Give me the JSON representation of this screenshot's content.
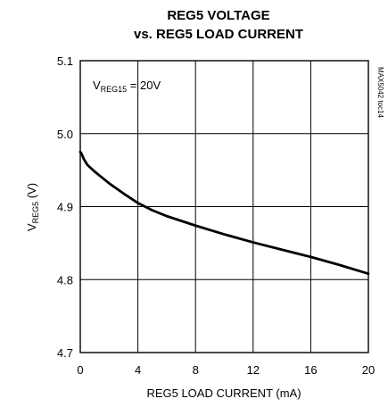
{
  "chart_data": {
    "type": "line",
    "title_line1": "REG5 VOLTAGE",
    "title_line2": "vs. REG5 LOAD CURRENT",
    "xlabel": "REG5 LOAD CURRENT (mA)",
    "ylabel": {
      "prefix": "V",
      "sub": "REG5",
      "suffix": " (V)"
    },
    "xlim": [
      0,
      20
    ],
    "ylim": [
      4.7,
      5.1
    ],
    "xticks": [
      "0",
      "4",
      "8",
      "12",
      "16",
      "20"
    ],
    "yticks": [
      "4.7",
      "4.8",
      "4.9",
      "5.0",
      "5.1"
    ],
    "grid": true,
    "annotation": {
      "prefix": "V",
      "sub": "REG15",
      "suffix": " = 20V"
    },
    "watermark": "MAX5042 toc14",
    "series": [
      {
        "x": [
          0,
          0.1,
          0.25,
          0.5,
          1,
          1.5,
          2,
          3,
          4,
          5,
          6,
          8,
          10,
          12,
          14,
          16,
          18,
          20
        ],
        "y": [
          4.975,
          4.972,
          4.965,
          4.957,
          4.948,
          4.94,
          4.932,
          4.918,
          4.905,
          4.895,
          4.887,
          4.874,
          4.862,
          4.851,
          4.841,
          4.831,
          4.82,
          4.808
        ],
        "color": "#000000"
      }
    ]
  }
}
